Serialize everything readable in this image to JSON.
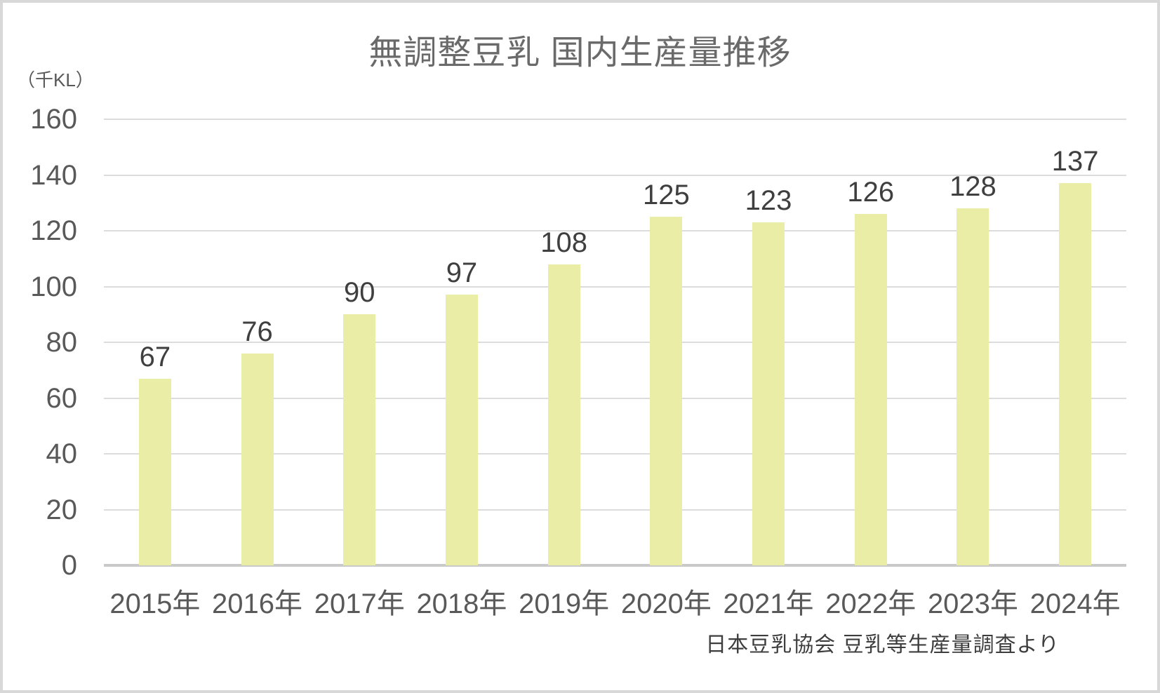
{
  "chart_data": {
    "type": "bar",
    "title": "無調整豆乳 国内生産量推移",
    "unit_label": "（千KL）",
    "categories": [
      "2015年",
      "2016年",
      "2017年",
      "2018年",
      "2019年",
      "2020年",
      "2021年",
      "2022年",
      "2023年",
      "2024年"
    ],
    "values": [
      67,
      76,
      90,
      97,
      108,
      125,
      123,
      126,
      128,
      137
    ],
    "ylabel": "（千KL）",
    "xlabel": "",
    "ylim": [
      0,
      160
    ],
    "yticks": [
      0,
      20,
      40,
      60,
      80,
      100,
      120,
      140,
      160
    ],
    "grid": "horizontal",
    "legend": "none",
    "data_labels": true,
    "source": "日本豆乳協会 豆乳等生産量調査より",
    "colors": {
      "bar": "#e9eda6",
      "gridline": "#dcdcdc",
      "axis_line": "#c9c9c9",
      "title_text": "#6a6a6a",
      "tick_text": "#595959",
      "value_text": "#3f3f3f"
    }
  }
}
